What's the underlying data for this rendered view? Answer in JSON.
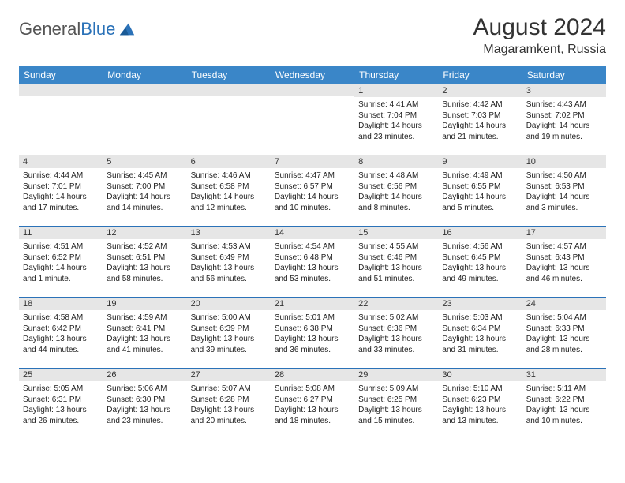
{
  "logo": {
    "part1": "General",
    "part2": "Blue"
  },
  "title": "August 2024",
  "location": "Magaramkent, Russia",
  "colors": {
    "header_bg": "#3a86c8",
    "header_fg": "#ffffff",
    "daybar_bg": "#e6e6e6",
    "daybar_border": "#2b72b8",
    "text": "#222222",
    "background": "#ffffff"
  },
  "day_headers": [
    "Sunday",
    "Monday",
    "Tuesday",
    "Wednesday",
    "Thursday",
    "Friday",
    "Saturday"
  ],
  "weeks": [
    [
      {
        "n": "",
        "lines": []
      },
      {
        "n": "",
        "lines": []
      },
      {
        "n": "",
        "lines": []
      },
      {
        "n": "",
        "lines": []
      },
      {
        "n": "1",
        "lines": [
          "Sunrise: 4:41 AM",
          "Sunset: 7:04 PM",
          "Daylight: 14 hours and 23 minutes."
        ]
      },
      {
        "n": "2",
        "lines": [
          "Sunrise: 4:42 AM",
          "Sunset: 7:03 PM",
          "Daylight: 14 hours and 21 minutes."
        ]
      },
      {
        "n": "3",
        "lines": [
          "Sunrise: 4:43 AM",
          "Sunset: 7:02 PM",
          "Daylight: 14 hours and 19 minutes."
        ]
      }
    ],
    [
      {
        "n": "4",
        "lines": [
          "Sunrise: 4:44 AM",
          "Sunset: 7:01 PM",
          "Daylight: 14 hours and 17 minutes."
        ]
      },
      {
        "n": "5",
        "lines": [
          "Sunrise: 4:45 AM",
          "Sunset: 7:00 PM",
          "Daylight: 14 hours and 14 minutes."
        ]
      },
      {
        "n": "6",
        "lines": [
          "Sunrise: 4:46 AM",
          "Sunset: 6:58 PM",
          "Daylight: 14 hours and 12 minutes."
        ]
      },
      {
        "n": "7",
        "lines": [
          "Sunrise: 4:47 AM",
          "Sunset: 6:57 PM",
          "Daylight: 14 hours and 10 minutes."
        ]
      },
      {
        "n": "8",
        "lines": [
          "Sunrise: 4:48 AM",
          "Sunset: 6:56 PM",
          "Daylight: 14 hours and 8 minutes."
        ]
      },
      {
        "n": "9",
        "lines": [
          "Sunrise: 4:49 AM",
          "Sunset: 6:55 PM",
          "Daylight: 14 hours and 5 minutes."
        ]
      },
      {
        "n": "10",
        "lines": [
          "Sunrise: 4:50 AM",
          "Sunset: 6:53 PM",
          "Daylight: 14 hours and 3 minutes."
        ]
      }
    ],
    [
      {
        "n": "11",
        "lines": [
          "Sunrise: 4:51 AM",
          "Sunset: 6:52 PM",
          "Daylight: 14 hours and 1 minute."
        ]
      },
      {
        "n": "12",
        "lines": [
          "Sunrise: 4:52 AM",
          "Sunset: 6:51 PM",
          "Daylight: 13 hours and 58 minutes."
        ]
      },
      {
        "n": "13",
        "lines": [
          "Sunrise: 4:53 AM",
          "Sunset: 6:49 PM",
          "Daylight: 13 hours and 56 minutes."
        ]
      },
      {
        "n": "14",
        "lines": [
          "Sunrise: 4:54 AM",
          "Sunset: 6:48 PM",
          "Daylight: 13 hours and 53 minutes."
        ]
      },
      {
        "n": "15",
        "lines": [
          "Sunrise: 4:55 AM",
          "Sunset: 6:46 PM",
          "Daylight: 13 hours and 51 minutes."
        ]
      },
      {
        "n": "16",
        "lines": [
          "Sunrise: 4:56 AM",
          "Sunset: 6:45 PM",
          "Daylight: 13 hours and 49 minutes."
        ]
      },
      {
        "n": "17",
        "lines": [
          "Sunrise: 4:57 AM",
          "Sunset: 6:43 PM",
          "Daylight: 13 hours and 46 minutes."
        ]
      }
    ],
    [
      {
        "n": "18",
        "lines": [
          "Sunrise: 4:58 AM",
          "Sunset: 6:42 PM",
          "Daylight: 13 hours and 44 minutes."
        ]
      },
      {
        "n": "19",
        "lines": [
          "Sunrise: 4:59 AM",
          "Sunset: 6:41 PM",
          "Daylight: 13 hours and 41 minutes."
        ]
      },
      {
        "n": "20",
        "lines": [
          "Sunrise: 5:00 AM",
          "Sunset: 6:39 PM",
          "Daylight: 13 hours and 39 minutes."
        ]
      },
      {
        "n": "21",
        "lines": [
          "Sunrise: 5:01 AM",
          "Sunset: 6:38 PM",
          "Daylight: 13 hours and 36 minutes."
        ]
      },
      {
        "n": "22",
        "lines": [
          "Sunrise: 5:02 AM",
          "Sunset: 6:36 PM",
          "Daylight: 13 hours and 33 minutes."
        ]
      },
      {
        "n": "23",
        "lines": [
          "Sunrise: 5:03 AM",
          "Sunset: 6:34 PM",
          "Daylight: 13 hours and 31 minutes."
        ]
      },
      {
        "n": "24",
        "lines": [
          "Sunrise: 5:04 AM",
          "Sunset: 6:33 PM",
          "Daylight: 13 hours and 28 minutes."
        ]
      }
    ],
    [
      {
        "n": "25",
        "lines": [
          "Sunrise: 5:05 AM",
          "Sunset: 6:31 PM",
          "Daylight: 13 hours and 26 minutes."
        ]
      },
      {
        "n": "26",
        "lines": [
          "Sunrise: 5:06 AM",
          "Sunset: 6:30 PM",
          "Daylight: 13 hours and 23 minutes."
        ]
      },
      {
        "n": "27",
        "lines": [
          "Sunrise: 5:07 AM",
          "Sunset: 6:28 PM",
          "Daylight: 13 hours and 20 minutes."
        ]
      },
      {
        "n": "28",
        "lines": [
          "Sunrise: 5:08 AM",
          "Sunset: 6:27 PM",
          "Daylight: 13 hours and 18 minutes."
        ]
      },
      {
        "n": "29",
        "lines": [
          "Sunrise: 5:09 AM",
          "Sunset: 6:25 PM",
          "Daylight: 13 hours and 15 minutes."
        ]
      },
      {
        "n": "30",
        "lines": [
          "Sunrise: 5:10 AM",
          "Sunset: 6:23 PM",
          "Daylight: 13 hours and 13 minutes."
        ]
      },
      {
        "n": "31",
        "lines": [
          "Sunrise: 5:11 AM",
          "Sunset: 6:22 PM",
          "Daylight: 13 hours and 10 minutes."
        ]
      }
    ]
  ]
}
